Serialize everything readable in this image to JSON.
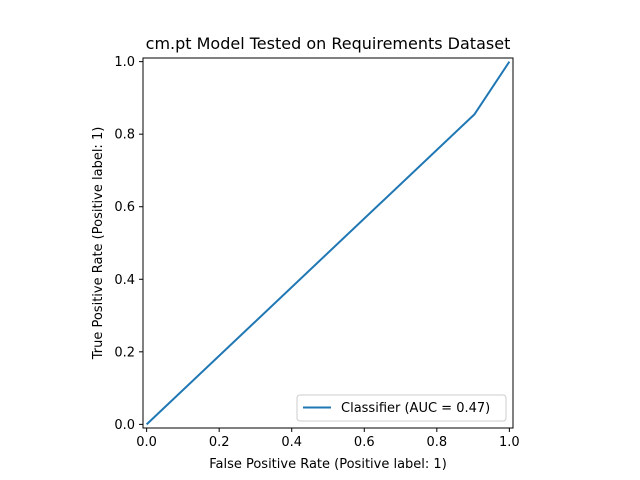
{
  "chart_data": {
    "type": "line",
    "title": "cm.pt Model Tested on Requirements Dataset",
    "xlabel": "False Positive Rate (Positive label: 1)",
    "ylabel": "True Positive Rate (Positive label: 1)",
    "xlim": [
      -0.01,
      1.01
    ],
    "ylim": [
      -0.01,
      1.01
    ],
    "xticks": [
      0.0,
      0.2,
      0.4,
      0.6,
      0.8,
      1.0
    ],
    "yticks": [
      0.0,
      0.2,
      0.4,
      0.6,
      0.8,
      1.0
    ],
    "xtick_labels": [
      "0.0",
      "0.2",
      "0.4",
      "0.6",
      "0.8",
      "1.0"
    ],
    "ytick_labels": [
      "0.0",
      "0.2",
      "0.4",
      "0.6",
      "0.8",
      "1.0"
    ],
    "grid": false,
    "legend_position": "lower-right",
    "series": [
      {
        "name": "Classifier (AUC = 0.47)",
        "color": "#1f77b4",
        "x": [
          0.0,
          0.904,
          1.0
        ],
        "y": [
          0.0,
          0.855,
          1.0
        ]
      }
    ]
  }
}
